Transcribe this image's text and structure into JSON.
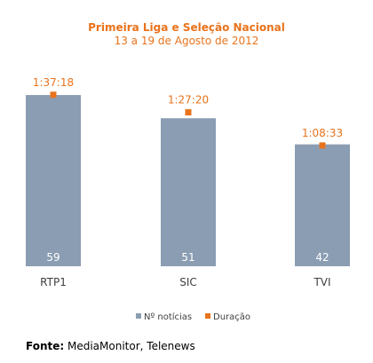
{
  "colors": {
    "bar": "#8b9db3",
    "marker": "#e8731c",
    "title": "#e8731c",
    "axis_text": "#404040",
    "bar_label": "#ffffff"
  },
  "chart_data": {
    "type": "bar",
    "title": "Primeira Liga e Seleção Nacional",
    "subtitle": "13 a 19 de Agosto de 2012",
    "categories": [
      "RTP1",
      "SIC",
      "TVI"
    ],
    "series": [
      {
        "name": "Nº notícias",
        "kind": "bar",
        "values": [
          59,
          51,
          42
        ]
      },
      {
        "name": "Duração",
        "kind": "marker",
        "values": [
          "1:37:18",
          "1:27:20",
          "1:08:33"
        ]
      }
    ],
    "legend_position": "bottom",
    "grid": false
  },
  "source": {
    "label": "Fonte:",
    "text": " MediaMonitor, Telenews"
  }
}
